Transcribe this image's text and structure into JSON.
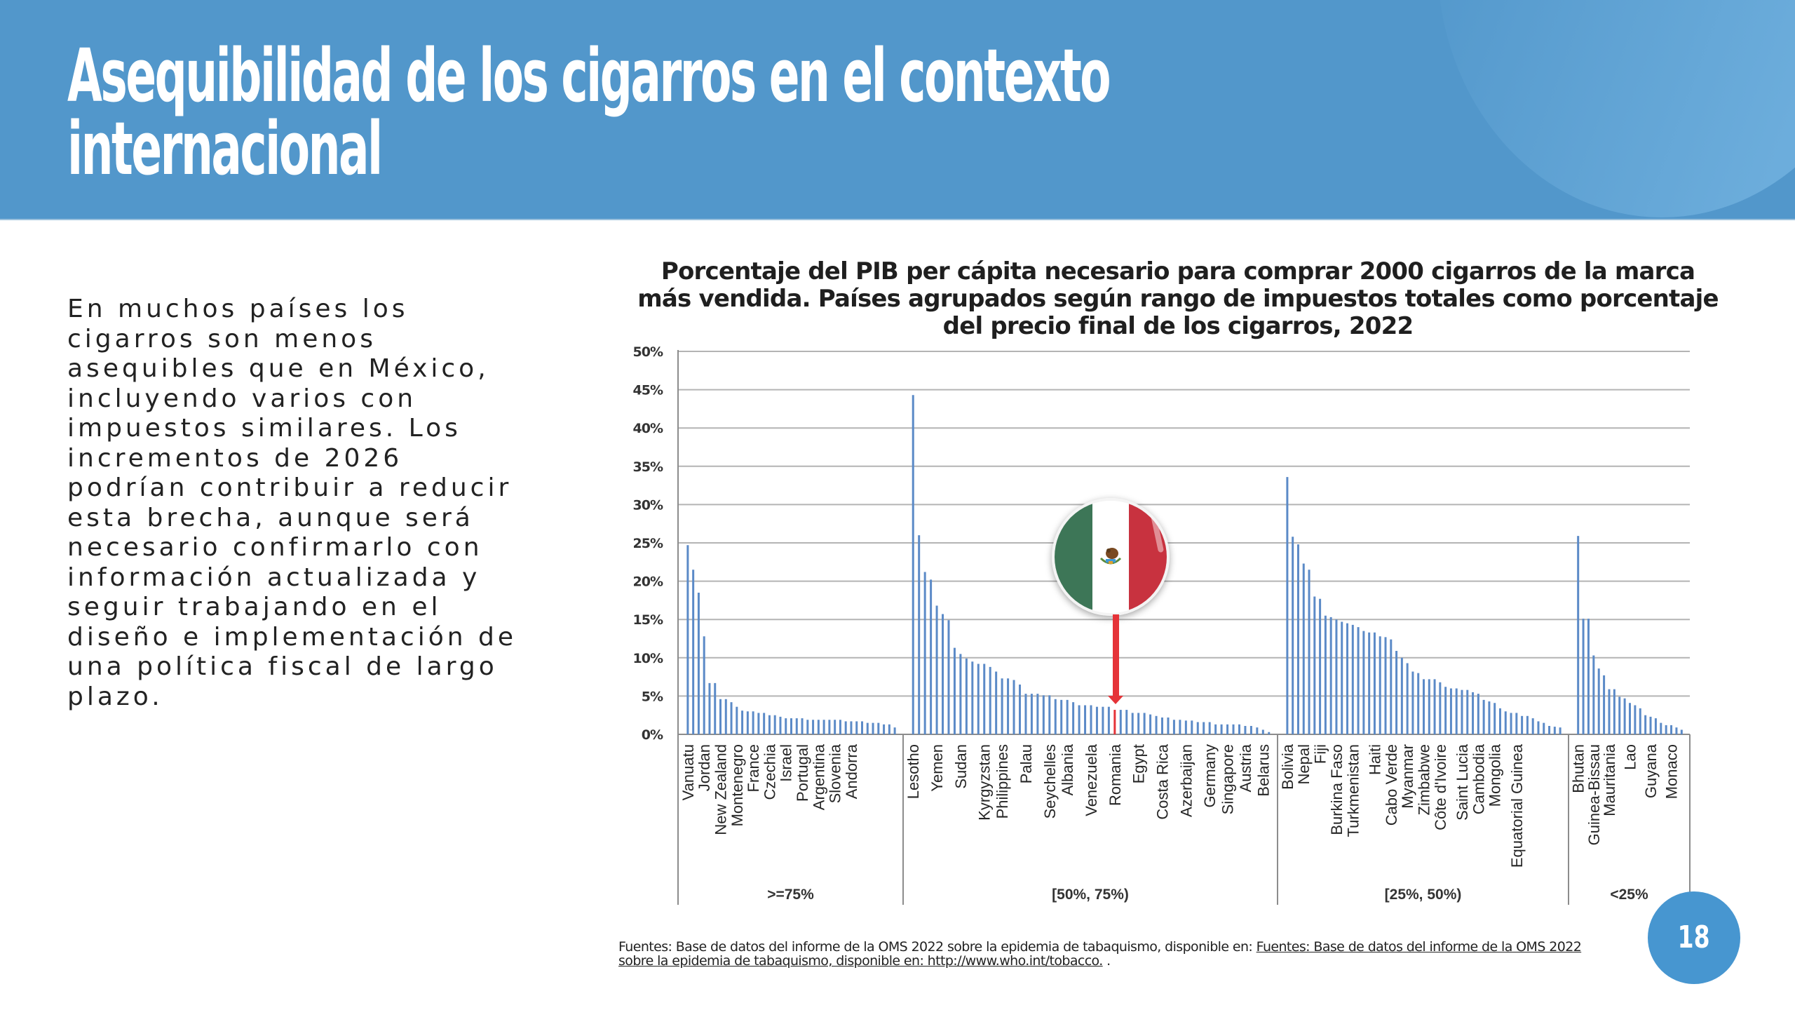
{
  "header": {
    "title_lines": [
      "Asequibilidad de los cigarros en el contexto",
      "internacional"
    ]
  },
  "body_text_lines": [
    "En muchos países los",
    "cigarros son menos",
    "asequibles que en México,",
    "incluyendo varios con",
    "impuestos similares. Los",
    "incrementos de 2026",
    "podrían contribuir a reducir",
    "esta brecha, aunque será",
    "necesario confirmarlo con",
    "información actualizada y",
    "seguir trabajando en el",
    "diseño e implementación de",
    "una política fiscal de largo",
    "plazo."
  ],
  "footer": {
    "source_prefix": "Fuentes: Base de datos del informe de la OMS 2022 sobre la epidemia de tabaquismo, disponible en: ",
    "source_link": "Fuentes: Base de datos del informe de la OMS 2022 sobre la epidemia de tabaquismo, disponible en: http://www.who.int/tobacco.",
    "source_suffix": " ."
  },
  "page_number": "18",
  "highlight": {
    "country": "Mexico",
    "icon": "mexico-flag-icon",
    "marker_color": "#e53338"
  },
  "colors": {
    "header_bg": "#5297cb",
    "bar": "#5b8ac7",
    "highlight_bar": "#e53338",
    "grid": "#b4b4b4",
    "page_badge": "#4796d0"
  },
  "chart_data": {
    "type": "bar",
    "title_lines": [
      "Porcentaje del PIB per cápita necesario para comprar 2000 cigarros de la marca",
      "más vendida. Países agrupados según rango de impuestos totales como porcentaje",
      "del precio final de los cigarros, 2022"
    ],
    "xlabel": "",
    "ylabel": "",
    "ylim": [
      0,
      50
    ],
    "yticks": [
      "0%",
      "5%",
      "10%",
      "15%",
      "20%",
      "25%",
      "30%",
      "35%",
      "40%",
      "45%",
      "50%"
    ],
    "grid": true,
    "legend": "none",
    "groups": [
      {
        "label": ">=75%",
        "values": [
          24.7,
          21.5,
          18.5,
          12.8,
          6.7,
          6.7,
          4.6,
          4.6,
          4.2,
          3.6,
          3.1,
          3.0,
          3.0,
          2.8,
          2.8,
          2.5,
          2.5,
          2.3,
          2.1,
          2.1,
          2.1,
          2.1,
          1.9,
          1.9,
          1.9,
          1.9,
          1.9,
          1.9,
          1.9,
          1.7,
          1.7,
          1.7,
          1.7,
          1.5,
          1.5,
          1.5,
          1.3,
          1.3,
          0.9
        ],
        "labels": [
          {
            "index": 0,
            "text": "Vanuatu"
          },
          {
            "index": 3,
            "text": "Jordan"
          },
          {
            "index": 6,
            "text": "New Zealand"
          },
          {
            "index": 9,
            "text": "Montenegro"
          },
          {
            "index": 12,
            "text": "France"
          },
          {
            "index": 15,
            "text": "Czechia"
          },
          {
            "index": 18,
            "text": "Israel"
          },
          {
            "index": 21,
            "text": "Portugal"
          },
          {
            "index": 24,
            "text": "Argentina"
          },
          {
            "index": 27,
            "text": "Slovenia"
          },
          {
            "index": 30,
            "text": "Andorra"
          }
        ]
      },
      {
        "label": "[50%, 75%)",
        "values": [
          44.3,
          26.0,
          21.2,
          20.2,
          16.8,
          15.7,
          14.9,
          11.3,
          10.5,
          9.9,
          9.5,
          9.2,
          9.2,
          8.8,
          8.2,
          7.3,
          7.3,
          7.1,
          6.5,
          5.3,
          5.3,
          5.3,
          5.1,
          5.1,
          4.6,
          4.5,
          4.5,
          4.2,
          3.8,
          3.8,
          3.8,
          3.6,
          3.6,
          3.6,
          3.2,
          3.2,
          3.2,
          2.8,
          2.8,
          2.8,
          2.6,
          2.4,
          2.2,
          2.2,
          1.9,
          1.9,
          1.8,
          1.8,
          1.6,
          1.6,
          1.6,
          1.3,
          1.3,
          1.3,
          1.3,
          1.3,
          1.1,
          1.1,
          0.9,
          0.6,
          0.3
        ],
        "highlight_index": 34,
        "labels": [
          {
            "index": 0,
            "text": "Lesotho"
          },
          {
            "index": 4,
            "text": "Yemen"
          },
          {
            "index": 8,
            "text": "Sudan"
          },
          {
            "index": 12,
            "text": "Kyrgyzstan"
          },
          {
            "index": 15,
            "text": "Philippines"
          },
          {
            "index": 19,
            "text": "Palau"
          },
          {
            "index": 23,
            "text": "Seychelles"
          },
          {
            "index": 26,
            "text": "Albania"
          },
          {
            "index": 30,
            "text": "Venezuela"
          },
          {
            "index": 34,
            "text": "Romania"
          },
          {
            "index": 38,
            "text": "Egypt"
          },
          {
            "index": 42,
            "text": "Costa Rica"
          },
          {
            "index": 46,
            "text": "Azerbaijan"
          },
          {
            "index": 50,
            "text": "Germany"
          },
          {
            "index": 53,
            "text": "Singapore"
          },
          {
            "index": 56,
            "text": "Austria"
          },
          {
            "index": 59,
            "text": "Belarus"
          }
        ]
      },
      {
        "label": "[25%, 50%)",
        "values": [
          33.6,
          25.8,
          24.8,
          22.3,
          21.5,
          18.0,
          17.7,
          15.5,
          15.3,
          15.0,
          14.7,
          14.5,
          14.3,
          14.0,
          13.5,
          13.3,
          13.3,
          12.8,
          12.7,
          12.4,
          10.9,
          10.0,
          9.3,
          8.2,
          8.0,
          7.2,
          7.2,
          7.2,
          6.8,
          6.2,
          6.0,
          6.0,
          5.8,
          5.8,
          5.5,
          5.3,
          4.5,
          4.3,
          4.1,
          3.4,
          3.0,
          2.8,
          2.8,
          2.4,
          2.4,
          2.1,
          1.7,
          1.5,
          1.1,
          1.0,
          0.9
        ],
        "labels": [
          {
            "index": 0,
            "text": "Bolivia"
          },
          {
            "index": 3,
            "text": "Nepal"
          },
          {
            "index": 6,
            "text": "Fiji"
          },
          {
            "index": 9,
            "text": "Burkina Faso"
          },
          {
            "index": 12,
            "text": "Turkmenistan"
          },
          {
            "index": 16,
            "text": "Haiti"
          },
          {
            "index": 19,
            "text": "Cabo Verde"
          },
          {
            "index": 22,
            "text": "Myanmar"
          },
          {
            "index": 25,
            "text": "Zimbabwe"
          },
          {
            "index": 28,
            "text": "Côte d'Ivoire"
          },
          {
            "index": 32,
            "text": "Saint Lucia"
          },
          {
            "index": 35,
            "text": "Cambodia"
          },
          {
            "index": 38,
            "text": "Mongolia"
          },
          {
            "index": 42,
            "text": "Equatorial Guinea"
          }
        ]
      },
      {
        "label": "<25%",
        "values": [
          25.9,
          15.1,
          15.1,
          10.3,
          8.6,
          7.7,
          5.9,
          5.9,
          4.9,
          4.7,
          4.1,
          3.8,
          3.4,
          2.5,
          2.3,
          2.1,
          1.5,
          1.2,
          1.2,
          0.9,
          0.6
        ],
        "labels": [
          {
            "index": 0,
            "text": "Bhutan"
          },
          {
            "index": 3,
            "text": "Guinea-Bissau"
          },
          {
            "index": 6,
            "text": "Mauritania"
          },
          {
            "index": 10,
            "text": "Lao"
          },
          {
            "index": 14,
            "text": "Guyana"
          },
          {
            "index": 18,
            "text": "Monaco"
          }
        ]
      }
    ]
  }
}
